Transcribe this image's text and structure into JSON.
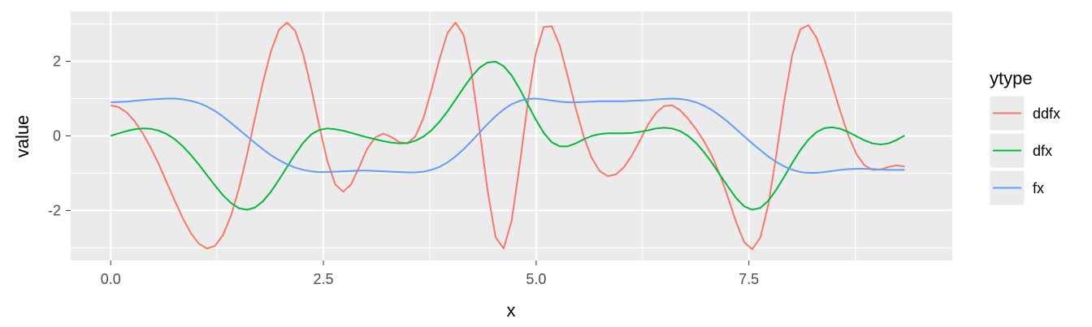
{
  "chart_data": {
    "type": "line",
    "xlabel": "x",
    "ylabel": "value",
    "xlim": [
      -0.47,
      9.89
    ],
    "ylim": [
      -3.34,
      3.34
    ],
    "x_ticks": [
      0.0,
      2.5,
      5.0,
      7.5
    ],
    "x_tick_labels": [
      "0.0",
      "2.5",
      "5.0",
      "7.5"
    ],
    "y_ticks": [
      -2,
      0,
      2
    ],
    "y_tick_labels": [
      "-2",
      "0",
      "2"
    ],
    "grid": true,
    "legend": {
      "title": "ytype",
      "position": "right"
    },
    "x": [
      0.0,
      0.0942,
      0.1885,
      0.2827,
      0.377,
      0.4712,
      0.5655,
      0.6597,
      0.754,
      0.8482,
      0.9425,
      1.0367,
      1.131,
      1.2252,
      1.3195,
      1.4137,
      1.508,
      1.6022,
      1.6965,
      1.7907,
      1.885,
      1.9792,
      2.0735,
      2.1677,
      2.2619,
      2.3562,
      2.4504,
      2.5447,
      2.6389,
      2.7332,
      2.8274,
      2.9217,
      3.0159,
      3.1102,
      3.2044,
      3.2987,
      3.3929,
      3.4872,
      3.5814,
      3.6757,
      3.7699,
      3.8642,
      3.9584,
      4.0527,
      4.1469,
      4.2412,
      4.3354,
      4.4296,
      4.5239,
      4.6181,
      4.7124,
      4.8066,
      4.9009,
      4.9951,
      5.0894,
      5.1836,
      5.2779,
      5.3721,
      5.4664,
      5.5606,
      5.6549,
      5.7491,
      5.8434,
      5.9376,
      6.0319,
      6.1261,
      6.2204,
      6.3146,
      6.4088,
      6.5031,
      6.5973,
      6.6916,
      6.7858,
      6.8801,
      6.9743,
      7.0686,
      7.1628,
      7.2571,
      7.3513,
      7.4456,
      7.5398,
      7.6341,
      7.7283,
      7.8226,
      7.9168,
      8.0111,
      8.1053,
      8.1996,
      8.2938,
      8.3881,
      8.4823,
      8.5765,
      8.6708,
      8.765,
      8.8593,
      8.9535,
      9.0478,
      9.142,
      9.2363,
      9.3305
    ],
    "series": [
      {
        "name": "ddfx",
        "color": "#F8766D",
        "values": [
          0.82,
          0.77,
          0.63,
          0.39,
          0.07,
          -0.32,
          -0.76,
          -1.25,
          -1.74,
          -2.21,
          -2.61,
          -2.89,
          -3.02,
          -2.95,
          -2.66,
          -2.14,
          -1.41,
          -0.51,
          0.48,
          1.45,
          2.28,
          2.85,
          3.04,
          2.82,
          2.2,
          1.29,
          0.27,
          -0.66,
          -1.3,
          -1.5,
          -1.29,
          -0.83,
          -0.34,
          -0.04,
          0.06,
          -0.03,
          -0.17,
          -0.2,
          -0.01,
          0.48,
          1.23,
          2.06,
          2.76,
          3.04,
          2.71,
          1.69,
          0.16,
          -1.47,
          -2.72,
          -3.02,
          -2.27,
          -0.78,
          0.87,
          2.2,
          2.92,
          2.94,
          2.42,
          1.59,
          0.73,
          -0.03,
          -0.6,
          -0.95,
          -1.08,
          -1.03,
          -0.84,
          -0.52,
          -0.12,
          0.3,
          0.62,
          0.8,
          0.82,
          0.69,
          0.46,
          0.18,
          -0.15,
          -0.55,
          -1.06,
          -1.67,
          -2.32,
          -2.85,
          -3.04,
          -2.73,
          -1.85,
          -0.51,
          0.96,
          2.18,
          2.86,
          2.97,
          2.64,
          2.05,
          1.35,
          0.64,
          -0.0,
          -0.49,
          -0.79,
          -0.91,
          -0.9,
          -0.83,
          -0.79,
          -0.82
        ]
      },
      {
        "name": "dfx",
        "color": "#00BA38",
        "values": [
          0.0,
          0.07,
          0.13,
          0.18,
          0.2,
          0.19,
          0.14,
          0.05,
          -0.09,
          -0.28,
          -0.51,
          -0.77,
          -1.05,
          -1.33,
          -1.59,
          -1.8,
          -1.94,
          -1.98,
          -1.92,
          -1.75,
          -1.49,
          -1.17,
          -0.83,
          -0.49,
          -0.19,
          0.04,
          0.16,
          0.2,
          0.18,
          0.14,
          0.08,
          0.02,
          -0.04,
          -0.09,
          -0.14,
          -0.18,
          -0.2,
          -0.19,
          -0.13,
          -0.02,
          0.15,
          0.38,
          0.66,
          0.97,
          1.29,
          1.59,
          1.83,
          1.97,
          1.99,
          1.87,
          1.62,
          1.26,
          0.85,
          0.44,
          0.08,
          -0.17,
          -0.28,
          -0.28,
          -0.2,
          -0.09,
          0.0,
          0.05,
          0.07,
          0.07,
          0.07,
          0.08,
          0.11,
          0.15,
          0.2,
          0.22,
          0.2,
          0.13,
          0.0,
          -0.19,
          -0.44,
          -0.73,
          -1.05,
          -1.37,
          -1.67,
          -1.89,
          -1.98,
          -1.93,
          -1.74,
          -1.44,
          -1.09,
          -0.72,
          -0.38,
          -0.1,
          0.1,
          0.21,
          0.23,
          0.19,
          0.1,
          -0.01,
          -0.12,
          -0.2,
          -0.23,
          -0.2,
          -0.11,
          0.01
        ]
      },
      {
        "name": "fx",
        "color": "#619CFF",
        "values": [
          0.9,
          0.91,
          0.92,
          0.94,
          0.96,
          0.98,
          0.99,
          1.0,
          1.0,
          0.98,
          0.94,
          0.88,
          0.79,
          0.67,
          0.52,
          0.35,
          0.17,
          -0.01,
          -0.19,
          -0.36,
          -0.52,
          -0.65,
          -0.76,
          -0.85,
          -0.91,
          -0.95,
          -0.97,
          -0.97,
          -0.96,
          -0.95,
          -0.94,
          -0.93,
          -0.93,
          -0.94,
          -0.95,
          -0.96,
          -0.97,
          -0.98,
          -0.98,
          -0.96,
          -0.91,
          -0.83,
          -0.71,
          -0.55,
          -0.36,
          -0.14,
          0.09,
          0.32,
          0.53,
          0.71,
          0.85,
          0.94,
          0.99,
          1.0,
          0.98,
          0.95,
          0.92,
          0.9,
          0.9,
          0.91,
          0.92,
          0.93,
          0.93,
          0.93,
          0.93,
          0.94,
          0.95,
          0.96,
          0.98,
          0.99,
          1.0,
          0.99,
          0.96,
          0.9,
          0.81,
          0.69,
          0.54,
          0.37,
          0.18,
          -0.01,
          -0.2,
          -0.38,
          -0.55,
          -0.7,
          -0.82,
          -0.91,
          -0.97,
          -0.99,
          -0.99,
          -0.97,
          -0.94,
          -0.91,
          -0.89,
          -0.88,
          -0.88,
          -0.89,
          -0.9,
          -0.91,
          -0.91,
          -0.91
        ]
      }
    ]
  }
}
